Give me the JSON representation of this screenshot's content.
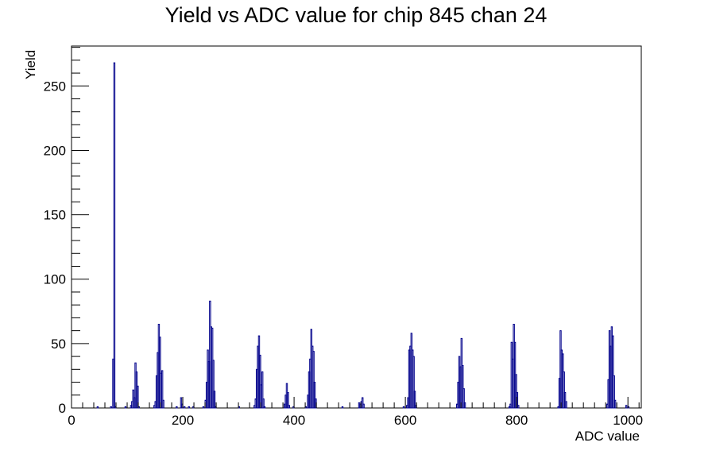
{
  "chart_data": {
    "type": "bar",
    "title": "Yield vs ADC value for chip 845 chan 24",
    "xlabel": "ADC value",
    "ylabel": "Yield",
    "xlim": [
      0,
      1024
    ],
    "ylim": [
      0,
      281
    ],
    "x_ticks": [
      0,
      200,
      400,
      600,
      800,
      1000
    ],
    "y_ticks": [
      0,
      50,
      100,
      150,
      200,
      250
    ],
    "grid": false,
    "legend": "none",
    "color": "#00008b",
    "bin_width": 2,
    "bins": [
      [
        46,
        1
      ],
      [
        70,
        1
      ],
      [
        74,
        38
      ],
      [
        76,
        268
      ],
      [
        78,
        1
      ],
      [
        96,
        1
      ],
      [
        106,
        2
      ],
      [
        108,
        5
      ],
      [
        110,
        14
      ],
      [
        112,
        8
      ],
      [
        114,
        35
      ],
      [
        116,
        28
      ],
      [
        118,
        17
      ],
      [
        120,
        1
      ],
      [
        148,
        2
      ],
      [
        150,
        5
      ],
      [
        152,
        25
      ],
      [
        154,
        43
      ],
      [
        156,
        65
      ],
      [
        158,
        55
      ],
      [
        160,
        27
      ],
      [
        162,
        29
      ],
      [
        164,
        6
      ],
      [
        188,
        1
      ],
      [
        196,
        8
      ],
      [
        198,
        3
      ],
      [
        202,
        1
      ],
      [
        210,
        1
      ],
      [
        218,
        1
      ],
      [
        236,
        1
      ],
      [
        240,
        6
      ],
      [
        242,
        20
      ],
      [
        244,
        45
      ],
      [
        246,
        36
      ],
      [
        248,
        83
      ],
      [
        250,
        63
      ],
      [
        252,
        62
      ],
      [
        254,
        37
      ],
      [
        256,
        13
      ],
      [
        258,
        1
      ],
      [
        300,
        1
      ],
      [
        328,
        2
      ],
      [
        330,
        7
      ],
      [
        332,
        30
      ],
      [
        334,
        48
      ],
      [
        336,
        56
      ],
      [
        338,
        41
      ],
      [
        340,
        18
      ],
      [
        342,
        28
      ],
      [
        344,
        7
      ],
      [
        346,
        1
      ],
      [
        382,
        3
      ],
      [
        384,
        10
      ],
      [
        386,
        19
      ],
      [
        388,
        12
      ],
      [
        390,
        2
      ],
      [
        398,
        1
      ],
      [
        420,
        1
      ],
      [
        424,
        10
      ],
      [
        426,
        28
      ],
      [
        428,
        38
      ],
      [
        430,
        61
      ],
      [
        432,
        48
      ],
      [
        434,
        44
      ],
      [
        436,
        20
      ],
      [
        438,
        7
      ],
      [
        486,
        1
      ],
      [
        516,
        4
      ],
      [
        518,
        3
      ],
      [
        520,
        5
      ],
      [
        522,
        8
      ],
      [
        524,
        3
      ],
      [
        596,
        1
      ],
      [
        602,
        2
      ],
      [
        604,
        8
      ],
      [
        606,
        45
      ],
      [
        608,
        48
      ],
      [
        610,
        58
      ],
      [
        612,
        45
      ],
      [
        614,
        40
      ],
      [
        616,
        13
      ],
      [
        618,
        2
      ],
      [
        692,
        3
      ],
      [
        694,
        20
      ],
      [
        696,
        40
      ],
      [
        698,
        32
      ],
      [
        700,
        54
      ],
      [
        702,
        33
      ],
      [
        704,
        15
      ],
      [
        706,
        4
      ],
      [
        786,
        1
      ],
      [
        788,
        3
      ],
      [
        790,
        51
      ],
      [
        792,
        38
      ],
      [
        794,
        65
      ],
      [
        796,
        51
      ],
      [
        798,
        26
      ],
      [
        800,
        12
      ],
      [
        802,
        2
      ],
      [
        874,
        1
      ],
      [
        876,
        23
      ],
      [
        878,
        60
      ],
      [
        880,
        45
      ],
      [
        882,
        42
      ],
      [
        884,
        28
      ],
      [
        886,
        12
      ],
      [
        888,
        5
      ],
      [
        962,
        3
      ],
      [
        964,
        22
      ],
      [
        966,
        60
      ],
      [
        968,
        48
      ],
      [
        970,
        63
      ],
      [
        972,
        56
      ],
      [
        974,
        25
      ],
      [
        976,
        6
      ],
      [
        996,
        2
      ],
      [
        1000,
        1
      ]
    ]
  }
}
